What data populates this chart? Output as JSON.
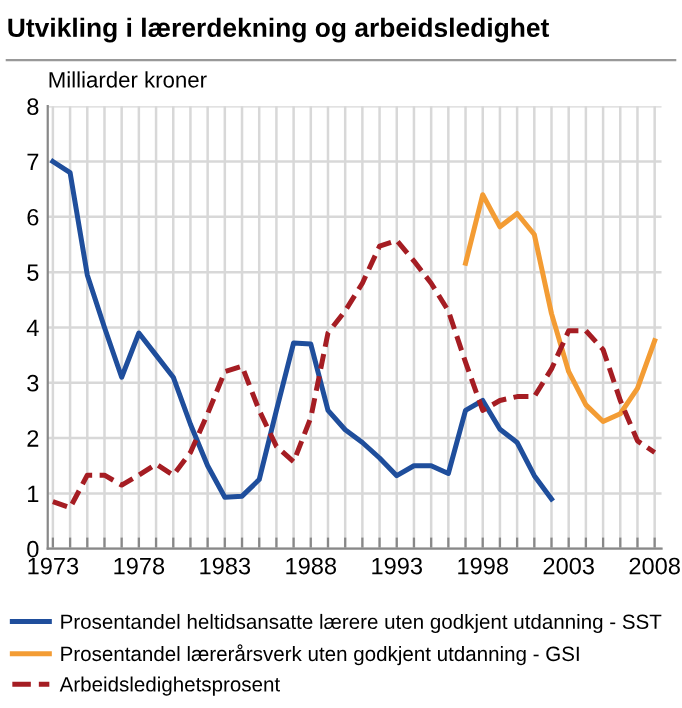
{
  "chart_data": {
    "type": "line",
    "title": "Utvikling i lærerdekning og arbeidsledighet",
    "ylabel": "Milliarder kroner",
    "xlim": [
      1972.7,
      2008.4
    ],
    "ylim": [
      0,
      8
    ],
    "yticks": [
      0,
      1,
      2,
      3,
      4,
      5,
      6,
      7,
      8
    ],
    "xticks": [
      1973,
      {
        "value": 1974,
        "label": null
      },
      {
        "value": 1975,
        "label": null
      },
      {
        "value": 1976,
        "label": null
      },
      {
        "value": 1977,
        "label": null
      },
      1978,
      {
        "value": 1979,
        "label": null
      },
      {
        "value": 1980,
        "label": null
      },
      {
        "value": 1981,
        "label": null
      },
      {
        "value": 1982,
        "label": null
      },
      1983,
      {
        "value": 1984,
        "label": null
      },
      {
        "value": 1985,
        "label": null
      },
      {
        "value": 1986,
        "label": null
      },
      {
        "value": 1987,
        "label": null
      },
      1988,
      {
        "value": 1989,
        "label": null
      },
      {
        "value": 1990,
        "label": null
      },
      {
        "value": 1991,
        "label": null
      },
      {
        "value": 1992,
        "label": null
      },
      1993,
      {
        "value": 1994,
        "label": null
      },
      {
        "value": 1995,
        "label": null
      },
      {
        "value": 1996,
        "label": null
      },
      {
        "value": 1997,
        "label": null
      },
      1998,
      {
        "value": 1999,
        "label": null
      },
      {
        "value": 2000,
        "label": null
      },
      {
        "value": 2001,
        "label": null
      },
      {
        "value": 2002,
        "label": null
      },
      2003,
      {
        "value": 2004,
        "label": null
      },
      {
        "value": 2005,
        "label": null
      },
      {
        "value": 2006,
        "label": null
      },
      {
        "value": 2007,
        "label": null
      },
      2008
    ],
    "grid": true,
    "legend": "bottom",
    "series": [
      {
        "name": "Prosentandel heltidsansatte lærere uten godkjent utdanning - SST",
        "color": "#1f4e9c",
        "line_style": "solid",
        "x": [
          1973,
          1974,
          1975,
          1976,
          1977,
          1978,
          1979,
          1980,
          1981,
          1982,
          1983,
          1984,
          1985,
          1986,
          1987,
          1988,
          1989,
          1990,
          1991,
          1992,
          1993,
          1994,
          1995,
          1996,
          1997,
          1998,
          1999,
          2000,
          2001,
          2002
        ],
        "values": [
          7.0,
          6.8,
          4.95,
          4.0,
          3.1,
          3.9,
          3.5,
          3.1,
          2.25,
          1.5,
          0.93,
          0.95,
          1.25,
          2.5,
          3.72,
          3.7,
          2.5,
          2.15,
          1.92,
          1.64,
          1.32,
          1.5,
          1.5,
          1.36,
          2.5,
          2.68,
          2.16,
          1.92,
          1.32,
          0.9
        ]
      },
      {
        "name": "Prosentandel lærerårsverk uten godkjent utdanning - GSI",
        "color": "#f39c34",
        "line_style": "solid",
        "x": [
          1997,
          1998,
          1999,
          2000,
          2001,
          2002,
          2003,
          2004,
          2005,
          2006,
          2007,
          2008
        ],
        "values": [
          5.16,
          6.4,
          5.82,
          6.06,
          5.68,
          4.25,
          3.2,
          2.6,
          2.3,
          2.44,
          2.9,
          3.76
        ]
      },
      {
        "name": "Arbeidsledighetsprosent",
        "color": "#a51d23",
        "line_style": "dashed",
        "x": [
          1973,
          1974,
          1975,
          1976,
          1977,
          1978,
          1979,
          1980,
          1981,
          1982,
          1983,
          1984,
          1985,
          1986,
          1987,
          1988,
          1989,
          1990,
          1991,
          1992,
          1993,
          1994,
          1995,
          1996,
          1997,
          1998,
          1999,
          2000,
          2001,
          2002,
          2003,
          2004,
          2005,
          2006,
          2007,
          2008
        ],
        "values": [
          0.85,
          0.74,
          1.33,
          1.33,
          1.15,
          1.33,
          1.53,
          1.33,
          1.74,
          2.44,
          3.2,
          3.3,
          2.5,
          1.85,
          1.57,
          2.37,
          3.9,
          4.3,
          4.8,
          5.47,
          5.57,
          5.2,
          4.8,
          4.3,
          3.37,
          2.5,
          2.68,
          2.75,
          2.75,
          3.25,
          3.94,
          3.94,
          3.6,
          2.68,
          1.95,
          1.74
        ]
      }
    ]
  }
}
